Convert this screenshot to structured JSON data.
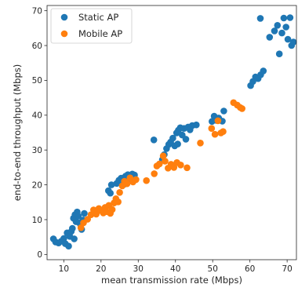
{
  "chart_data": {
    "type": "scatter",
    "title": "",
    "xlabel": "mean transmission rate (Mbps)",
    "ylabel": "end-to-end throughput (Mbps)",
    "xlim": [
      5.5,
      72.5
    ],
    "ylim": [
      -1.5,
      71.5
    ],
    "xticks": [
      10,
      20,
      30,
      40,
      50,
      60,
      70
    ],
    "yticks": [
      0,
      10,
      20,
      30,
      40,
      50,
      60,
      70
    ],
    "grid": false,
    "legend_position": "top-left",
    "series": [
      {
        "name": "Static AP",
        "color": "#1f77b4",
        "points": [
          [
            7.2,
            4.5
          ],
          [
            7.8,
            3.6
          ],
          [
            8.6,
            3.3
          ],
          [
            9.3,
            3.8
          ],
          [
            10.0,
            4.6
          ],
          [
            10.4,
            3.1
          ],
          [
            10.9,
            6.2
          ],
          [
            11.3,
            2.4
          ],
          [
            11.6,
            5.2
          ],
          [
            12.0,
            6.6
          ],
          [
            12.3,
            7.5
          ],
          [
            12.6,
            10.4
          ],
          [
            13.0,
            11.4
          ],
          [
            13.3,
            9.4
          ],
          [
            13.6,
            12.2
          ],
          [
            13.9,
            11.0
          ],
          [
            14.2,
            9.1
          ],
          [
            14.5,
            8.6
          ],
          [
            14.8,
            7.2
          ],
          [
            15.2,
            9.9
          ],
          [
            15.5,
            11.8
          ],
          [
            12.8,
            4.5
          ],
          [
            22.0,
            18.3
          ],
          [
            22.5,
            17.6
          ],
          [
            22.8,
            20.0
          ],
          [
            24.2,
            20.4
          ],
          [
            24.8,
            21.3
          ],
          [
            25.4,
            21.9
          ],
          [
            26.0,
            21.0
          ],
          [
            26.6,
            22.5
          ],
          [
            27.2,
            22.9
          ],
          [
            27.8,
            21.6
          ],
          [
            28.4,
            23.1
          ],
          [
            29.0,
            22.8
          ],
          [
            26.3,
            20.2
          ],
          [
            34.2,
            32.9
          ],
          [
            36.5,
            27.2
          ],
          [
            37.0,
            28.7
          ],
          [
            37.6,
            30.4
          ],
          [
            38.2,
            31.6
          ],
          [
            38.7,
            32.3
          ],
          [
            39.3,
            33.4
          ],
          [
            39.8,
            31.2
          ],
          [
            40.3,
            34.9
          ],
          [
            40.8,
            35.7
          ],
          [
            41.3,
            36.4
          ],
          [
            41.8,
            34.3
          ],
          [
            42.3,
            36.2
          ],
          [
            42.8,
            33.1
          ],
          [
            43.4,
            36.6
          ],
          [
            43.9,
            35.8
          ],
          [
            44.5,
            37.0
          ],
          [
            45.6,
            37.2
          ],
          [
            40.6,
            31.7
          ],
          [
            49.8,
            38.2
          ],
          [
            50.4,
            39.7
          ],
          [
            51.0,
            38.5
          ],
          [
            51.6,
            39.2
          ],
          [
            52.6,
            38.3
          ],
          [
            53.0,
            41.2
          ],
          [
            60.2,
            48.5
          ],
          [
            60.8,
            49.7
          ],
          [
            61.5,
            51.0
          ],
          [
            62.2,
            50.5
          ],
          [
            62.9,
            51.6
          ],
          [
            63.6,
            52.7
          ],
          [
            62.8,
            67.8
          ],
          [
            65.3,
            62.4
          ],
          [
            66.6,
            64.2
          ],
          [
            67.4,
            65.8
          ],
          [
            67.9,
            57.6
          ],
          [
            68.6,
            63.6
          ],
          [
            69.1,
            67.9
          ],
          [
            69.7,
            65.3
          ],
          [
            70.2,
            61.8
          ],
          [
            70.8,
            68.0
          ],
          [
            71.2,
            60.0
          ],
          [
            71.7,
            61.0
          ]
        ]
      },
      {
        "name": "Mobile AP",
        "color": "#ff7f0e",
        "points": [
          [
            14.6,
            7.7
          ],
          [
            15.3,
            9.1
          ],
          [
            16.4,
            10.1
          ],
          [
            17.3,
            11.4
          ],
          [
            18.0,
            12.8
          ],
          [
            18.7,
            11.6
          ],
          [
            19.4,
            13.2
          ],
          [
            20.0,
            12.6
          ],
          [
            20.6,
            11.9
          ],
          [
            21.1,
            13.5
          ],
          [
            21.6,
            12.3
          ],
          [
            22.1,
            14.1
          ],
          [
            22.5,
            11.8
          ],
          [
            23.0,
            12.9
          ],
          [
            23.5,
            14.8
          ],
          [
            24.0,
            16.0
          ],
          [
            24.6,
            15.1
          ],
          [
            25.0,
            17.8
          ],
          [
            25.7,
            19.7
          ],
          [
            26.3,
            21.0
          ],
          [
            27.0,
            20.3
          ],
          [
            27.8,
            22.0
          ],
          [
            28.6,
            20.8
          ],
          [
            29.4,
            21.5
          ],
          [
            32.2,
            21.2
          ],
          [
            34.3,
            23.2
          ],
          [
            35.0,
            25.4
          ],
          [
            35.7,
            26.0
          ],
          [
            36.7,
            28.3
          ],
          [
            37.2,
            26.8
          ],
          [
            38.0,
            24.8
          ],
          [
            38.8,
            25.9
          ],
          [
            39.6,
            25.0
          ],
          [
            40.4,
            26.4
          ],
          [
            41.4,
            25.7
          ],
          [
            43.1,
            24.9
          ],
          [
            46.7,
            32.0
          ],
          [
            49.7,
            36.2
          ],
          [
            50.6,
            34.5
          ],
          [
            51.4,
            38.4
          ],
          [
            52.2,
            34.9
          ],
          [
            52.8,
            35.3
          ],
          [
            55.6,
            43.6
          ],
          [
            56.6,
            42.9
          ],
          [
            57.4,
            42.2
          ],
          [
            57.9,
            41.9
          ]
        ]
      }
    ]
  }
}
